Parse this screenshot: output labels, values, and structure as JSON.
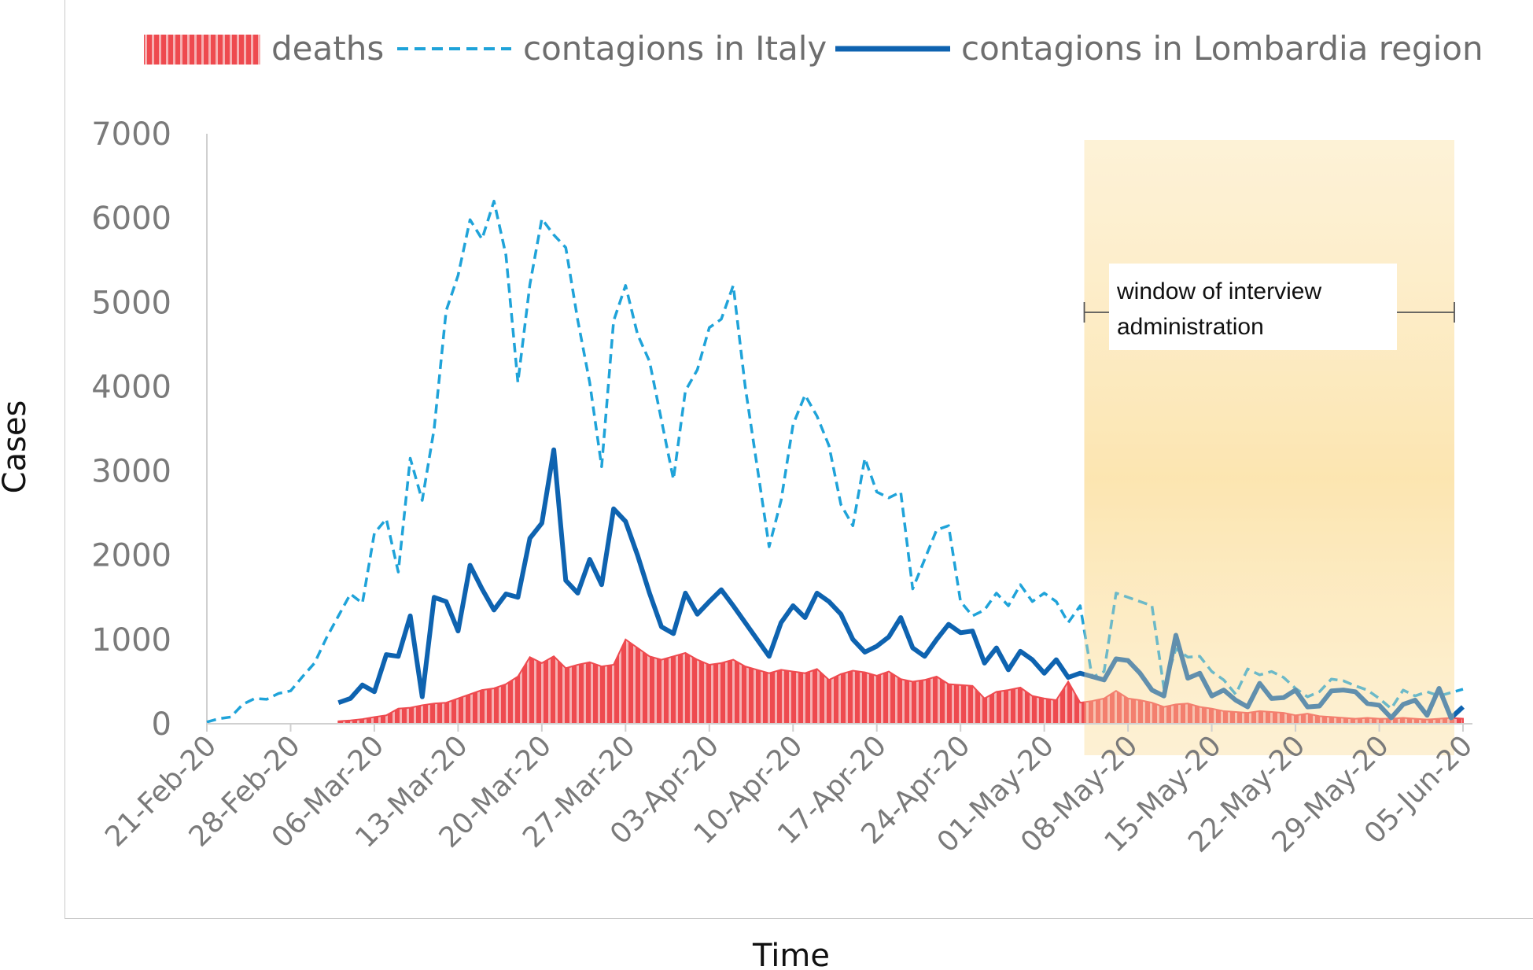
{
  "chart_data": {
    "type": "line",
    "title": "",
    "xlabel": "Time",
    "ylabel": "Cases",
    "ylim": [
      0,
      7000
    ],
    "yticks": [
      "0",
      "1000",
      "2000",
      "3000",
      "4000",
      "5000",
      "6000",
      "7000"
    ],
    "xtick_labels": [
      "21-Feb-20",
      "28-Feb-20",
      "06-Mar-20",
      "13-Mar-20",
      "20-Mar-20",
      "27-Mar-20",
      "03-Apr-20",
      "10-Apr-20",
      "17-Apr-20",
      "24-Apr-20",
      "01-May-20",
      "08-May-20",
      "15-May-20",
      "22-May-20",
      "29-May-20",
      "05-Jun-20"
    ],
    "x_start_label": "21-Feb-20",
    "x_days_range": [
      0,
      105
    ],
    "legend": {
      "deaths": "deaths",
      "italy": "contagions in Italy",
      "lombardia": "contagions in Lombardia region"
    },
    "annotation": {
      "line1": "window of interview",
      "line2": "administration",
      "start_day": 74,
      "end_day": 105
    },
    "colors": {
      "deaths": "#ee4a4f",
      "italy": "#1fa3d9",
      "lombardia": "#0e63b0",
      "window": "#fbe3a8"
    },
    "series": [
      {
        "name": "contagions in Italy",
        "style": "dashed",
        "x": [
          0,
          1,
          2,
          3,
          4,
          5,
          6,
          7,
          8,
          9,
          10,
          11,
          12,
          13,
          14,
          15,
          16,
          17,
          18,
          19,
          20,
          21,
          22,
          23,
          24,
          25,
          26,
          27,
          28,
          29,
          30,
          31,
          32,
          33,
          34,
          35,
          36,
          37,
          38,
          39,
          40,
          41,
          42,
          43,
          44,
          45,
          46,
          47,
          48,
          49,
          50,
          51,
          52,
          53,
          54,
          55,
          56,
          57,
          58,
          59,
          60,
          61,
          62,
          63,
          64,
          65,
          66,
          67,
          68,
          69,
          70,
          71,
          72,
          73,
          74,
          75,
          76,
          77,
          78,
          79,
          80,
          81,
          82,
          83,
          84,
          85,
          86,
          87,
          88,
          89,
          90,
          91,
          92,
          93,
          94,
          95,
          96,
          97,
          98,
          99,
          100,
          101,
          102,
          103,
          104,
          105
        ],
        "values": [
          20,
          60,
          80,
          230,
          300,
          290,
          360,
          390,
          560,
          720,
          1020,
          1280,
          1540,
          1430,
          2260,
          2430,
          1800,
          3150,
          2650,
          3500,
          4900,
          5320,
          5980,
          5750,
          6200,
          5560,
          4050,
          5210,
          5990,
          5800,
          5650,
          4790,
          4050,
          3050,
          4780,
          5200,
          4620,
          4300,
          3600,
          2900,
          3950,
          4200,
          4700,
          4800,
          5200,
          4000,
          3050,
          2100,
          2650,
          3550,
          3900,
          3650,
          3300,
          2600,
          2350,
          3150,
          2750,
          2680,
          2750,
          1600,
          1950,
          2300,
          2350,
          1450,
          1280,
          1350,
          1550,
          1400,
          1650,
          1450,
          1550,
          1450,
          1200,
          1400,
          550,
          620,
          1550,
          1500,
          1450,
          1400,
          420,
          890,
          790,
          800,
          620,
          520,
          350,
          650,
          580,
          620,
          550,
          420,
          320,
          380,
          530,
          510,
          450,
          400,
          300,
          180,
          400,
          330,
          380,
          330,
          370,
          410
        ]
      },
      {
        "name": "contagions in Lombardia region",
        "style": "solid",
        "x": [
          11,
          12,
          13,
          14,
          15,
          16,
          17,
          18,
          19,
          20,
          21,
          22,
          23,
          24,
          25,
          26,
          27,
          28,
          29,
          30,
          31,
          32,
          33,
          34,
          35,
          36,
          37,
          38,
          39,
          40,
          41,
          42,
          43,
          44,
          45,
          46,
          47,
          48,
          49,
          50,
          51,
          52,
          53,
          54,
          55,
          56,
          57,
          58,
          59,
          60,
          61,
          62,
          63,
          64,
          65,
          66,
          67,
          68,
          69,
          70,
          71,
          72,
          73,
          74,
          75,
          76,
          77,
          78,
          79,
          80,
          81,
          82,
          83,
          84,
          85,
          86,
          87,
          88,
          89,
          90,
          91,
          92,
          93,
          94,
          95,
          96,
          97,
          98,
          99,
          100,
          101,
          102,
          103,
          104,
          105
        ],
        "values": [
          250,
          300,
          460,
          380,
          820,
          800,
          1280,
          320,
          1500,
          1450,
          1100,
          1880,
          1600,
          1350,
          1540,
          1500,
          2200,
          2380,
          3250,
          1700,
          1550,
          1950,
          1650,
          2550,
          2400,
          2000,
          1550,
          1150,
          1070,
          1550,
          1300,
          1450,
          1590,
          1400,
          1200,
          1000,
          800,
          1200,
          1400,
          1260,
          1550,
          1450,
          1300,
          1000,
          850,
          920,
          1030,
          1260,
          900,
          800,
          1000,
          1180,
          1080,
          1100,
          720,
          900,
          640,
          860,
          760,
          600,
          760,
          550,
          600,
          560,
          520,
          770,
          750,
          600,
          400,
          330,
          1050,
          540,
          600,
          330,
          400,
          280,
          200,
          480,
          300,
          310,
          400,
          200,
          210,
          390,
          400,
          380,
          240,
          220,
          70,
          230,
          280,
          100,
          420,
          70,
          200
        ]
      },
      {
        "name": "deaths",
        "style": "bar",
        "x": [
          11,
          12,
          13,
          14,
          15,
          16,
          17,
          18,
          19,
          20,
          21,
          22,
          23,
          24,
          25,
          26,
          27,
          28,
          29,
          30,
          31,
          32,
          33,
          34,
          35,
          36,
          37,
          38,
          39,
          40,
          41,
          42,
          43,
          44,
          45,
          46,
          47,
          48,
          49,
          50,
          51,
          52,
          53,
          54,
          55,
          56,
          57,
          58,
          59,
          60,
          61,
          62,
          63,
          64,
          65,
          66,
          67,
          68,
          69,
          70,
          71,
          72,
          73,
          74,
          75,
          76,
          77,
          78,
          79,
          80,
          81,
          82,
          83,
          84,
          85,
          86,
          87,
          88,
          89,
          90,
          91,
          92,
          93,
          94,
          95,
          96,
          97,
          98,
          99,
          100,
          101,
          102,
          103,
          104,
          105
        ],
        "values": [
          30,
          40,
          55,
          80,
          100,
          180,
          190,
          220,
          240,
          250,
          300,
          350,
          400,
          420,
          470,
          560,
          790,
          720,
          800,
          660,
          700,
          730,
          680,
          700,
          1000,
          900,
          800,
          760,
          800,
          840,
          760,
          700,
          720,
          760,
          680,
          640,
          600,
          640,
          620,
          600,
          650,
          520,
          590,
          630,
          610,
          570,
          620,
          530,
          500,
          520,
          560,
          470,
          460,
          450,
          300,
          380,
          400,
          430,
          330,
          300,
          280,
          500,
          250,
          270,
          300,
          390,
          300,
          280,
          250,
          200,
          230,
          240,
          200,
          180,
          150,
          140,
          130,
          150,
          140,
          130,
          100,
          120,
          90,
          80,
          70,
          60,
          70,
          60,
          60,
          70,
          60,
          50,
          60,
          70,
          60
        ]
      }
    ]
  }
}
